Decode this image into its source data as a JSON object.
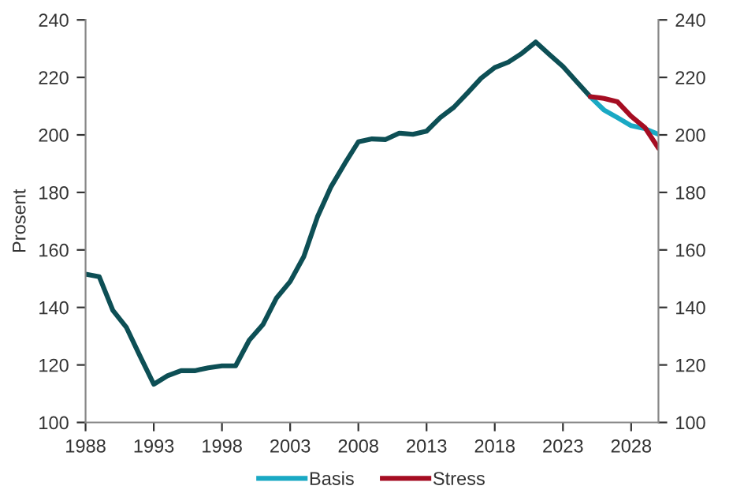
{
  "chart_data": {
    "type": "line",
    "ylabel": "Prosent",
    "xlim": [
      1988,
      2030
    ],
    "xticks": [
      1988,
      1993,
      1998,
      2003,
      2008,
      2013,
      2018,
      2023,
      2028
    ],
    "ylim": [
      100,
      240
    ],
    "yticks": [
      100,
      120,
      140,
      160,
      180,
      200,
      220,
      240
    ],
    "y2lim": [
      100,
      240
    ],
    "y2ticks": [
      100,
      120,
      140,
      160,
      180,
      200,
      220,
      240
    ],
    "grid": false,
    "legend": "bottom",
    "marker": "none",
    "line_style": "solid",
    "series": [
      {
        "color": "#0d4f55",
        "x": [
          1988,
          1989,
          1990,
          1991,
          1992,
          1993,
          1994,
          1995,
          1996,
          1997,
          1998,
          1999,
          2000,
          2001,
          2002,
          2003,
          2004,
          2005,
          2006,
          2007,
          2008,
          2009,
          2010,
          2011,
          2012,
          2013,
          2014,
          2015,
          2016,
          2017,
          2018,
          2019,
          2020,
          2021,
          2022,
          2023,
          2024,
          2025
        ],
        "values": [
          151.6,
          150.7,
          139,
          133,
          123,
          113.3,
          116.2,
          118,
          118,
          119,
          119.7,
          119.7,
          128.6,
          134,
          143.3,
          149,
          157.7,
          171.5,
          182,
          190,
          197.6,
          198.6,
          198.4,
          200.6,
          200.2,
          201.3,
          206,
          209.6,
          214.6,
          219.7,
          223.4,
          225.3,
          228.4,
          232.3,
          228,
          223.8,
          218.5,
          213.3
        ]
      },
      {
        "name": "Basis",
        "color": "#1aa9c4",
        "x": [
          2025,
          2026,
          2027,
          2028,
          2029,
          2030
        ],
        "values": [
          213.3,
          208.7,
          206,
          203.2,
          202.2,
          200.2
        ]
      },
      {
        "name": "Stress",
        "color": "#a50d22",
        "x": [
          2025,
          2026,
          2027,
          2028,
          2029,
          2030
        ],
        "values": [
          213.3,
          212.7,
          211.5,
          206.5,
          202.6,
          195.4
        ]
      }
    ]
  }
}
